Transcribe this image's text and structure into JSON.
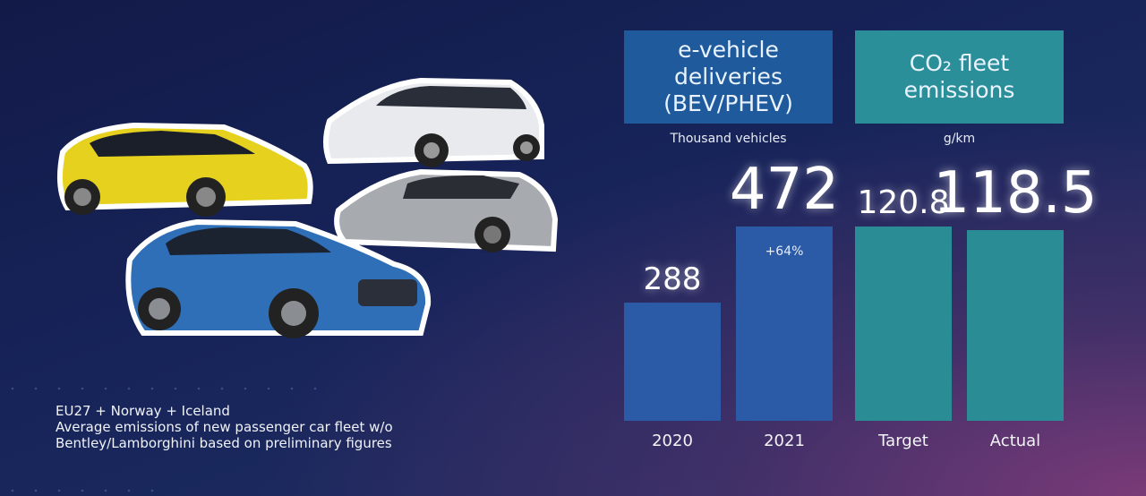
{
  "chart_data": [
    {
      "type": "bar",
      "title": "e-vehicle deliveries (BEV/PHEV)",
      "subtitle": "Thousand vehicles",
      "categories": [
        "2020",
        "2021"
      ],
      "values": [
        288,
        472
      ],
      "annotation": "+64%",
      "color": "#2b5ba6",
      "title_color": "#1e5a9c"
    },
    {
      "type": "bar",
      "title": "CO₂ fleet emissions",
      "subtitle": "g/km",
      "categories": [
        "Target",
        "Actual"
      ],
      "values": [
        120.8,
        118.5
      ],
      "color": "#2a8d96",
      "title_color": "#2a8f98"
    }
  ],
  "footnote": [
    "EU27 + Norway + Iceland",
    "Average emissions of new passenger car fleet w/o",
    "Bentley/Lamborghini based on preliminary figures"
  ]
}
